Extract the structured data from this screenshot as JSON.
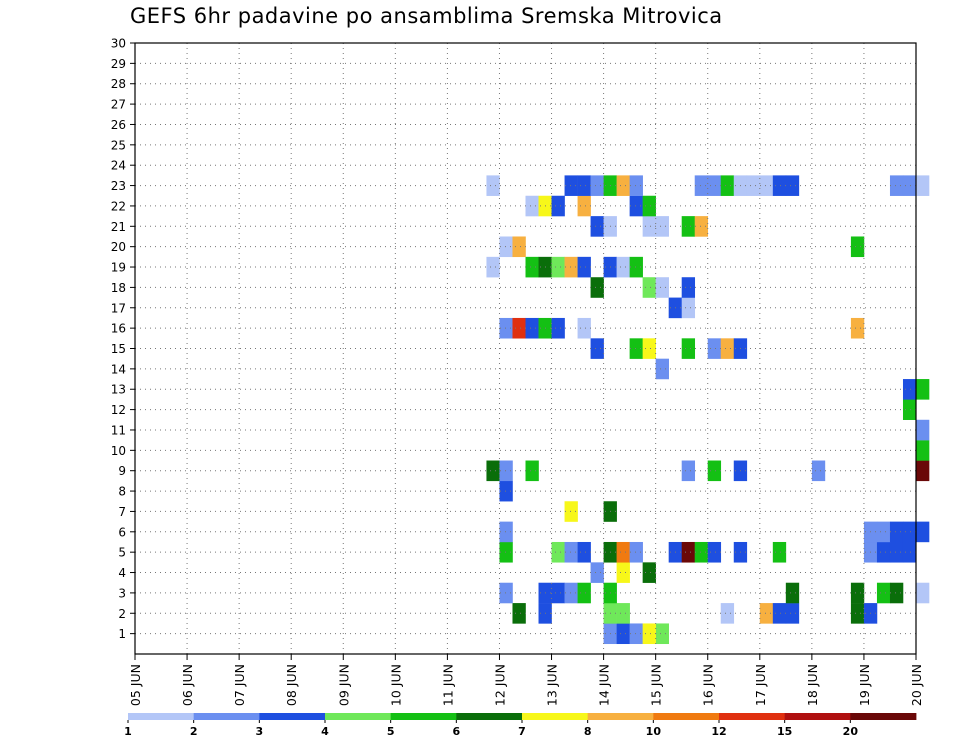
{
  "chart_data": {
    "type": "heatmap",
    "title": "GEFS 6hr padavine po ansamblima Sremska Mitrovica",
    "y_categories": [
      "1",
      "2",
      "3",
      "4",
      "5",
      "6",
      "7",
      "8",
      "9",
      "10",
      "11",
      "12",
      "13",
      "14",
      "15",
      "16",
      "17",
      "18",
      "19",
      "20",
      "21",
      "22",
      "23",
      "24",
      "25",
      "26",
      "27",
      "28",
      "29",
      "30"
    ],
    "x_tick_labels": [
      "05 JUN",
      "06 JUN",
      "07 JUN",
      "08 JUN",
      "09 JUN",
      "10 JUN",
      "11 JUN",
      "12 JUN",
      "13 JUN",
      "14 JUN",
      "15 JUN",
      "16 JUN",
      "17 JUN",
      "18 JUN",
      "19 JUN",
      "20 JUN"
    ],
    "x_range_days": [
      0,
      15
    ],
    "y_range": [
      0,
      30
    ],
    "grid": true,
    "colorbar": {
      "labels": [
        "1",
        "2",
        "3",
        "4",
        "5",
        "6",
        "7",
        "8",
        "10",
        "12",
        "15",
        "20"
      ],
      "colors": [
        "#b3c6f7",
        "#6b8ff0",
        "#1e4fe0",
        "#6fe85a",
        "#14c014",
        "#0a6e0a",
        "#f7f71a",
        "#f7b040",
        "#f07a10",
        "#e03010",
        "#b01010",
        "#6a0808"
      ]
    },
    "cells": [
      [
        0,
        14.0,
        1
      ],
      [
        0,
        14.25,
        2
      ],
      [
        0,
        14.5,
        1
      ],
      [
        0,
        15.0,
        3
      ],
      [
        0,
        14.75,
        6
      ],
      [
        1,
        12.25,
        5
      ],
      [
        1,
        12.75,
        2
      ],
      [
        1,
        14.0,
        3
      ],
      [
        1,
        14.25,
        3
      ],
      [
        1,
        16.25,
        0
      ],
      [
        1,
        17.0,
        7
      ],
      [
        1,
        17.25,
        2
      ],
      [
        1,
        17.5,
        2
      ],
      [
        1,
        18.75,
        5
      ],
      [
        1,
        19.0,
        2
      ],
      [
        2,
        12.0,
        1
      ],
      [
        2,
        12.75,
        2
      ],
      [
        2,
        13.0,
        2
      ],
      [
        2,
        13.25,
        1
      ],
      [
        2,
        13.5,
        4
      ],
      [
        2,
        14.0,
        4
      ],
      [
        2,
        17.5,
        5
      ],
      [
        2,
        18.75,
        5
      ],
      [
        2,
        19.25,
        4
      ],
      [
        2,
        19.5,
        5
      ],
      [
        2,
        20.0,
        0
      ],
      [
        3,
        13.75,
        1
      ],
      [
        3,
        14.25,
        6
      ],
      [
        3,
        14.75,
        5
      ],
      [
        4,
        12.0,
        4
      ],
      [
        4,
        13.0,
        3
      ],
      [
        4,
        13.25,
        1
      ],
      [
        4,
        13.5,
        2
      ],
      [
        4,
        14.0,
        5
      ],
      [
        4,
        14.25,
        8
      ],
      [
        4,
        14.5,
        1
      ],
      [
        4,
        15.25,
        2
      ],
      [
        4,
        15.5,
        11
      ],
      [
        4,
        15.75,
        4
      ],
      [
        4,
        16.0,
        2
      ],
      [
        4,
        16.5,
        2
      ],
      [
        4,
        17.25,
        4
      ],
      [
        4,
        19.0,
        1
      ],
      [
        4,
        19.25,
        2
      ],
      [
        4,
        19.5,
        2
      ],
      [
        4,
        19.75,
        2
      ],
      [
        5,
        12.0,
        1
      ],
      [
        5,
        19.0,
        1
      ],
      [
        5,
        19.25,
        1
      ],
      [
        5,
        19.5,
        2
      ],
      [
        5,
        19.75,
        2
      ],
      [
        5,
        20.0,
        2
      ],
      [
        6,
        14.0,
        5
      ],
      [
        6,
        13.25,
        6
      ],
      [
        7,
        12.0,
        2
      ],
      [
        8,
        11.75,
        5
      ],
      [
        8,
        12.0,
        1
      ],
      [
        8,
        12.5,
        4
      ],
      [
        8,
        15.5,
        1
      ],
      [
        8,
        16.0,
        4
      ],
      [
        8,
        16.5,
        2
      ],
      [
        8,
        18.0,
        1
      ],
      [
        8,
        20.0,
        11
      ],
      [
        9,
        20.0,
        4
      ],
      [
        10,
        20.0,
        1
      ],
      [
        11,
        19.75,
        4
      ],
      [
        12,
        19.75,
        2
      ],
      [
        12,
        20.0,
        4
      ],
      [
        13,
        15.0,
        1
      ],
      [
        14,
        13.75,
        2
      ],
      [
        14,
        14.5,
        4
      ],
      [
        14,
        14.75,
        6
      ],
      [
        14,
        15.5,
        4
      ],
      [
        14,
        16.0,
        1
      ],
      [
        14,
        16.25,
        7
      ],
      [
        14,
        16.5,
        2
      ],
      [
        15,
        12.0,
        1
      ],
      [
        15,
        12.25,
        9
      ],
      [
        15,
        12.5,
        2
      ],
      [
        15,
        12.75,
        4
      ],
      [
        15,
        13.0,
        2
      ],
      [
        15,
        13.5,
        0
      ],
      [
        15,
        18.75,
        7
      ],
      [
        16,
        15.25,
        2
      ],
      [
        16,
        15.5,
        0
      ],
      [
        17,
        13.75,
        5
      ],
      [
        17,
        14.75,
        3
      ],
      [
        17,
        15.0,
        0
      ],
      [
        17,
        15.5,
        2
      ],
      [
        18,
        11.75,
        0
      ],
      [
        18,
        12.5,
        4
      ],
      [
        18,
        12.75,
        5
      ],
      [
        18,
        13.0,
        3
      ],
      [
        18,
        13.25,
        7
      ],
      [
        18,
        13.5,
        2
      ],
      [
        18,
        14.0,
        2
      ],
      [
        18,
        14.25,
        0
      ],
      [
        18,
        14.5,
        4
      ],
      [
        19,
        12.0,
        0
      ],
      [
        19,
        12.25,
        7
      ],
      [
        19,
        18.75,
        4
      ],
      [
        20,
        13.75,
        2
      ],
      [
        20,
        14.0,
        0
      ],
      [
        20,
        14.75,
        0
      ],
      [
        20,
        15.0,
        0
      ],
      [
        20,
        15.5,
        4
      ],
      [
        20,
        15.75,
        7
      ],
      [
        21,
        12.5,
        0
      ],
      [
        21,
        12.75,
        6
      ],
      [
        21,
        13.0,
        2
      ],
      [
        21,
        13.5,
        7
      ],
      [
        21,
        14.5,
        2
      ],
      [
        21,
        14.75,
        4
      ],
      [
        22,
        11.75,
        0
      ],
      [
        22,
        13.25,
        2
      ],
      [
        22,
        13.5,
        2
      ],
      [
        22,
        13.75,
        1
      ],
      [
        22,
        14.0,
        4
      ],
      [
        22,
        14.25,
        7
      ],
      [
        22,
        14.5,
        1
      ],
      [
        22,
        15.75,
        1
      ],
      [
        22,
        16.0,
        1
      ],
      [
        22,
        16.25,
        4
      ],
      [
        22,
        16.5,
        0
      ],
      [
        22,
        16.75,
        0
      ],
      [
        22,
        17.0,
        0
      ],
      [
        22,
        17.25,
        2
      ],
      [
        22,
        17.5,
        2
      ],
      [
        22,
        19.5,
        1
      ],
      [
        22,
        19.75,
        1
      ],
      [
        22,
        20.0,
        0
      ]
    ]
  },
  "cell_rows_note_free": true
}
